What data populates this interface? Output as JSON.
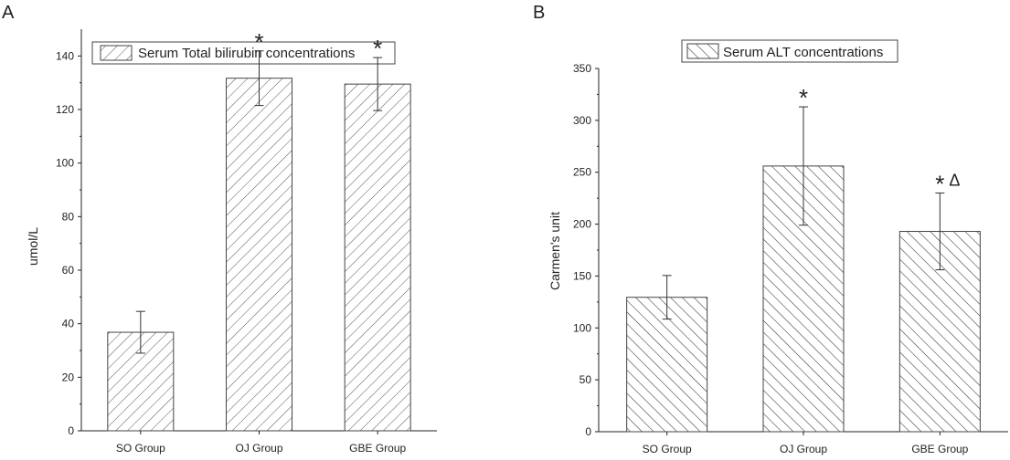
{
  "chart_data": [
    {
      "type": "bar",
      "panel_label": "A",
      "legend": "Serum Total bilirubin concentrations",
      "ylabel": "umol/L",
      "xlabel": "",
      "ylim": [
        0,
        150
      ],
      "yticks": [
        0,
        20,
        40,
        60,
        80,
        100,
        120,
        140
      ],
      "categories": [
        "SO Group",
        "OJ Group",
        "GBE Group"
      ],
      "values": [
        36.8,
        131.7,
        129.5
      ],
      "errors": [
        7.8,
        10.2,
        9.9
      ],
      "annotations": [
        "",
        "*",
        "*"
      ],
      "annotations_extra": [
        "",
        "",
        ""
      ],
      "hatch": "forward-diagonal"
    },
    {
      "type": "bar",
      "panel_label": "B",
      "legend": "Serum ALT concentrations",
      "ylabel": "Carmen's unit",
      "xlabel": "",
      "ylim": [
        0,
        350
      ],
      "yticks": [
        0,
        50,
        100,
        150,
        200,
        250,
        300,
        350
      ],
      "categories": [
        "SO Group",
        "OJ Group",
        "GBE Group"
      ],
      "values": [
        129.5,
        256,
        193
      ],
      "errors": [
        21,
        57,
        37
      ],
      "annotations": [
        "",
        "*",
        "*"
      ],
      "annotations_extra": [
        "",
        "",
        "Δ"
      ],
      "hatch": "back-diagonal"
    }
  ]
}
